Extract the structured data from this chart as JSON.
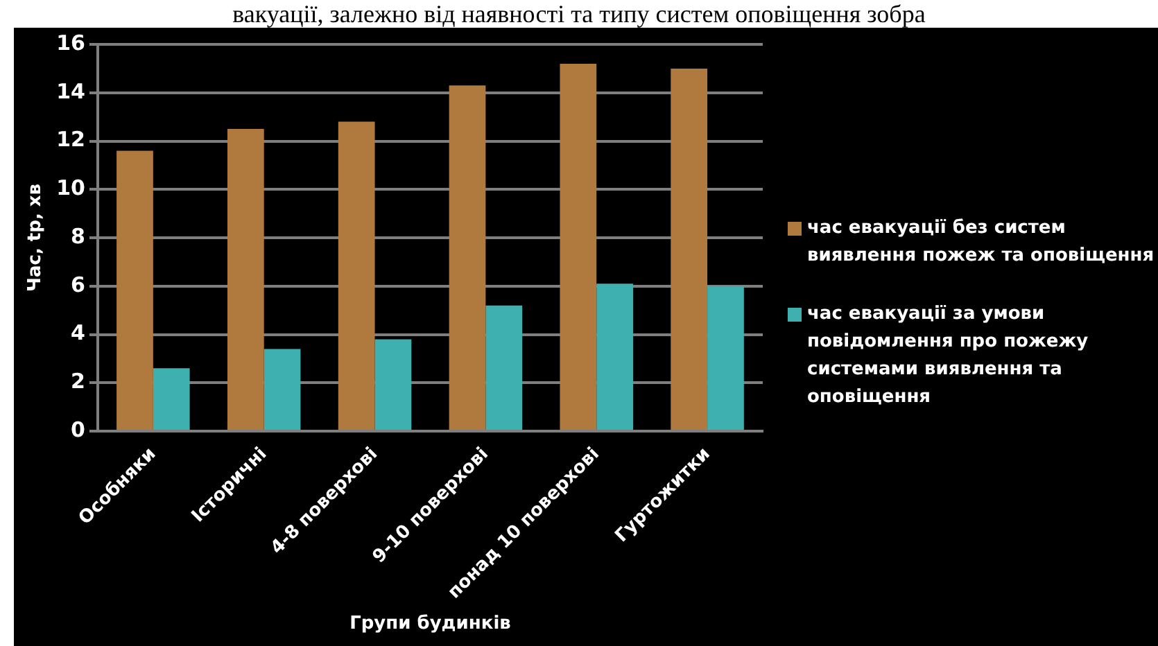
{
  "chart_data": {
    "type": "bar",
    "xlabel": "Групи будинків",
    "ylabel": "Час, tр, хв",
    "annotations": [
      "вакуації, залежно від наявності та типу систем оповіщення зобра"
    ],
    "categories": [
      "Особняки",
      "Історичні",
      "4-8 поверхові",
      "9-10 поверхові",
      "понад 10 поверхові",
      "Гуртожитки"
    ],
    "series": [
      {
        "name": "час евакуації без  систем виявлення пожеж та оповіщення",
        "color": "#b07a3e",
        "values": [
          11.6,
          12.5,
          12.8,
          14.3,
          15.2,
          15.0
        ]
      },
      {
        "name": "час евакуації за умови повідомлення про пожежу системами виявлення та оповіщення",
        "color": "#3fb0b0",
        "values": [
          2.6,
          3.4,
          3.8,
          5.2,
          6.1,
          6.0
        ]
      }
    ],
    "ylim": [
      0,
      16
    ],
    "yticks": [
      0,
      2,
      4,
      6,
      8,
      10,
      12,
      14,
      16
    ],
    "grid": "y",
    "legend": "right"
  }
}
